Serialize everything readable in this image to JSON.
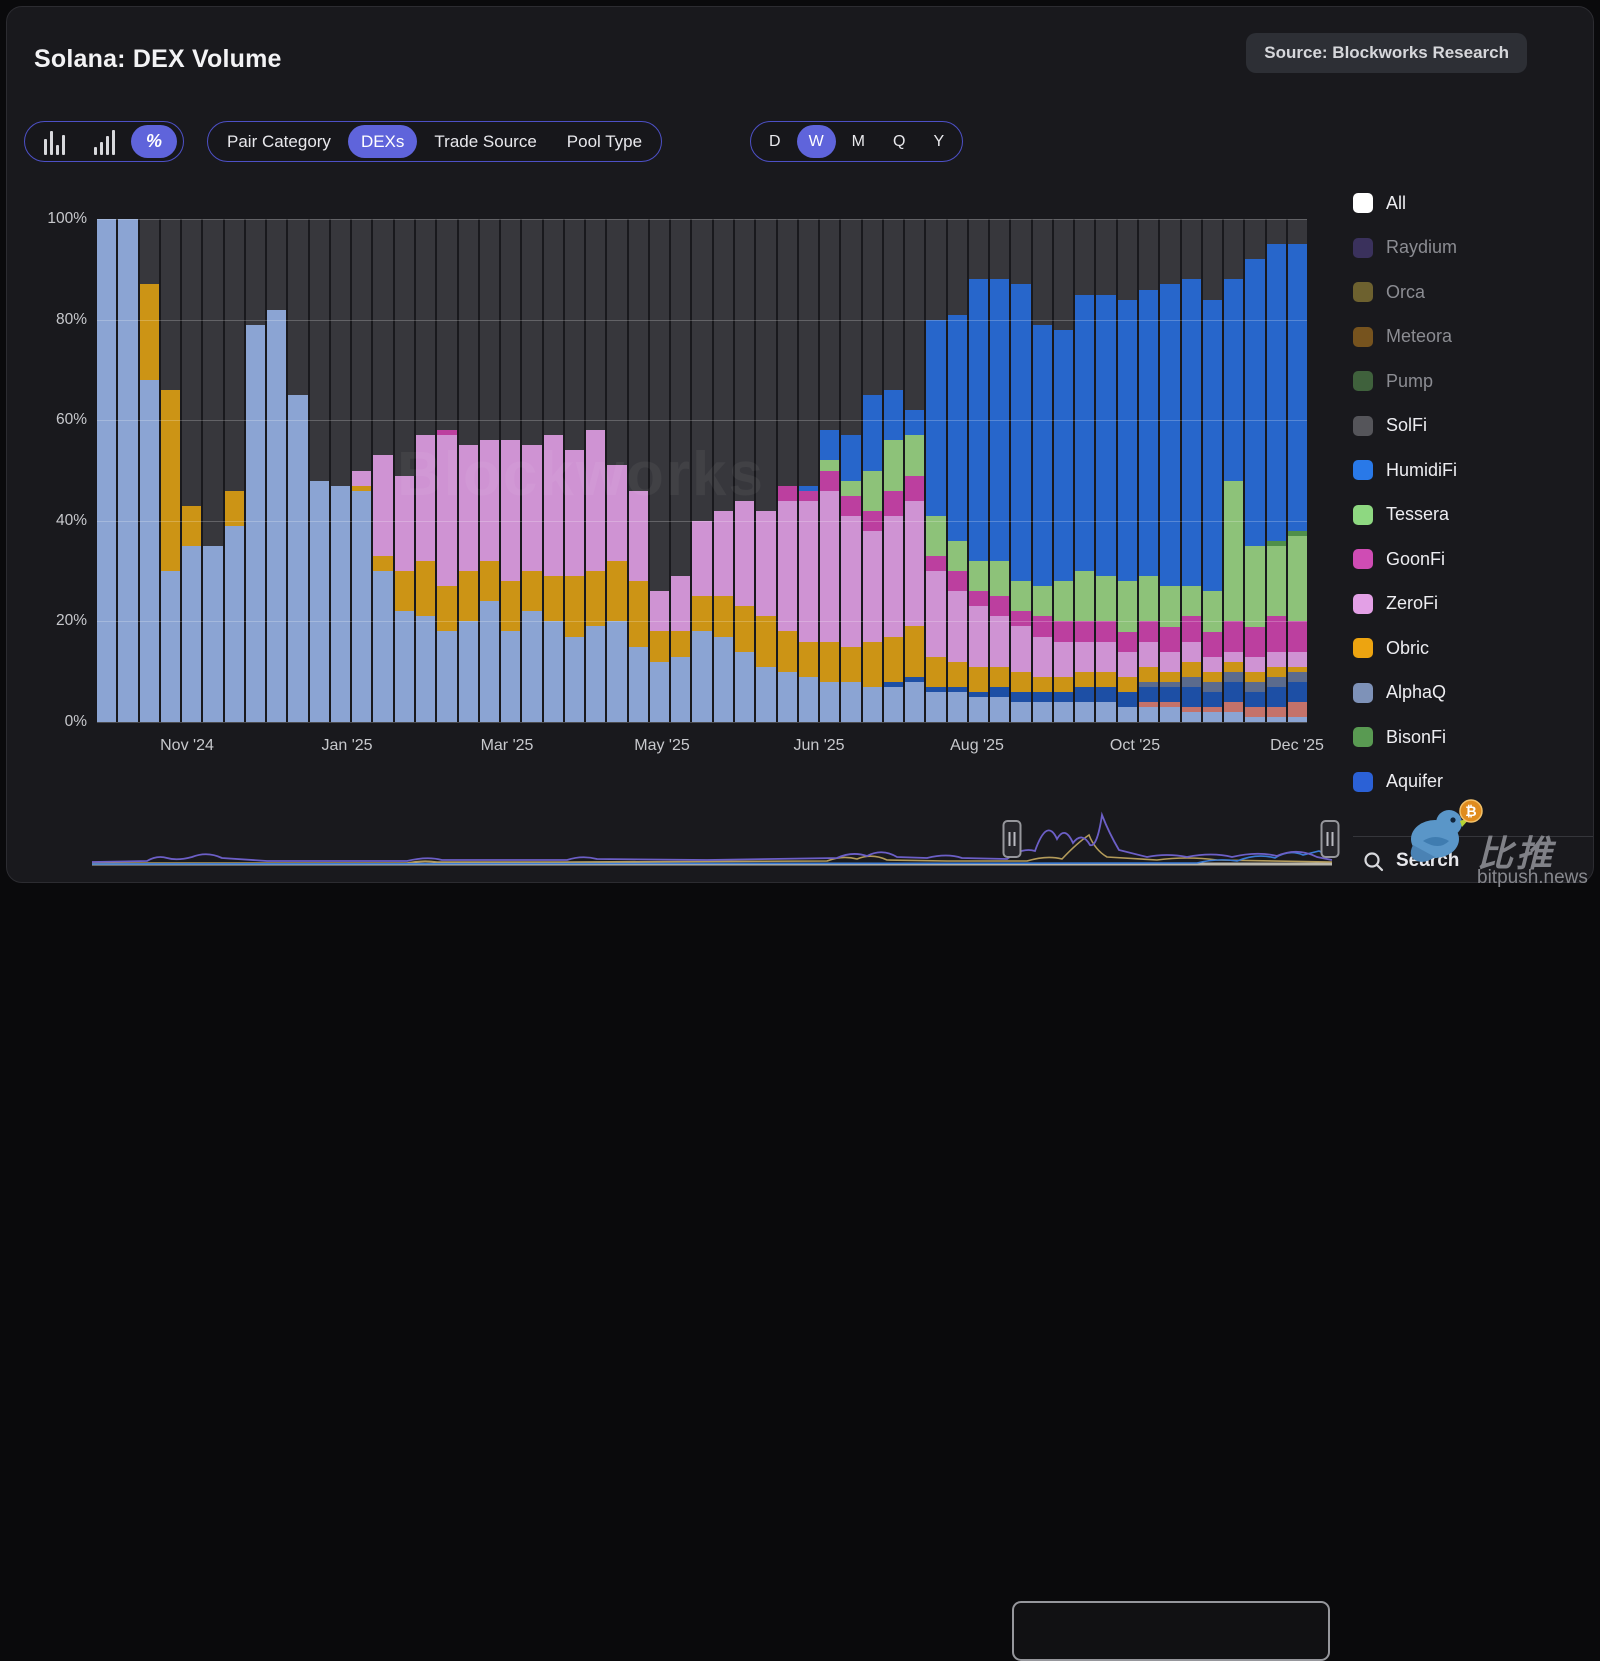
{
  "header": {
    "title": "Solana: DEX Volume",
    "source_badge": "Source: Blockworks Research"
  },
  "toolbar": {
    "chart_types": [
      {
        "name": "bar-chart-icon",
        "selected": false
      },
      {
        "name": "ascending-bars-icon",
        "selected": false
      },
      {
        "name": "percent-icon",
        "glyph": "%",
        "selected": true
      }
    ],
    "filters": [
      {
        "label": "Pair Category",
        "selected": false
      },
      {
        "label": "DEXs",
        "selected": true
      },
      {
        "label": "Trade Source",
        "selected": false
      },
      {
        "label": "Pool Type",
        "selected": false
      }
    ],
    "granularity": [
      {
        "label": "D",
        "selected": false
      },
      {
        "label": "W",
        "selected": true
      },
      {
        "label": "M",
        "selected": false
      },
      {
        "label": "Q",
        "selected": false
      },
      {
        "label": "Y",
        "selected": false
      }
    ],
    "accent_color": "#5f64db"
  },
  "legend": {
    "items": [
      {
        "label": "All",
        "color": "#ffffff",
        "dimmed": false
      },
      {
        "label": "Raydium",
        "color": "#453a72",
        "dimmed": true
      },
      {
        "label": "Orca",
        "color": "#8a7a35",
        "dimmed": true
      },
      {
        "label": "Meteora",
        "color": "#96671f",
        "dimmed": true
      },
      {
        "label": "Pump",
        "color": "#4c7a47",
        "dimmed": true
      },
      {
        "label": "SolFi",
        "color": "#55555a",
        "dimmed": false
      },
      {
        "label": "HumidiFi",
        "color": "#2979e8",
        "dimmed": false
      },
      {
        "label": "Tessera",
        "color": "#8ed881",
        "dimmed": false
      },
      {
        "label": "GoonFi",
        "color": "#cf4cb4",
        "dimmed": false
      },
      {
        "label": "ZeroFi",
        "color": "#e3a0e6",
        "dimmed": false
      },
      {
        "label": "Obric",
        "color": "#eda410",
        "dimmed": false
      },
      {
        "label": "AlphaQ",
        "color": "#7e92b8",
        "dimmed": false
      },
      {
        "label": "BisonFi",
        "color": "#599a52",
        "dimmed": false
      },
      {
        "label": "Aquifer",
        "color": "#2b61d6",
        "dimmed": false
      }
    ]
  },
  "search": {
    "label": "Search"
  },
  "watermarks": {
    "chart_text": "Blockworks",
    "bitpush_cn": "比推",
    "bitpush_domain": "bitpush.news"
  },
  "chart_data": {
    "type": "bar",
    "stacked": true,
    "normalized": "percent",
    "title": "Solana: DEX Volume",
    "granularity": "weekly",
    "x_axis_labels": [
      "Nov '24",
      "Jan '25",
      "Mar '25",
      "May '25",
      "Jun '25",
      "Aug '25",
      "Oct '25",
      "Dec '25"
    ],
    "y_ticks": [
      "0%",
      "20%",
      "40%",
      "60%",
      "80%",
      "100%"
    ],
    "ylim": [
      0,
      100
    ],
    "grid": true,
    "legend_position": "right",
    "series_order_bottom_to_top": [
      "AlphaQ",
      "unlabeled-salmon",
      "Aquifer",
      "unlabeled-slate",
      "Obric",
      "ZeroFi",
      "GoonFi",
      "Tessera",
      "BisonFi",
      "HumidiFi",
      "SolFi"
    ],
    "series_colors": {
      "AlphaQ": "#8ba4d3",
      "unlabeled-salmon": "#c4726a",
      "Aquifer": "#1d4fa5",
      "unlabeled-slate": "#5b6b8d",
      "Obric": "#cc9415",
      "ZeroFi": "#cf93d3",
      "GoonFi": "#bc3f9f",
      "Tessera": "#8dc279",
      "BisonFi": "#4f8f4a",
      "HumidiFi": "#2766cb",
      "SolFi": "#37373c"
    },
    "bars_percent_by_series": [
      [
        100,
        0,
        0,
        0,
        0,
        0,
        0,
        0,
        0,
        0,
        0
      ],
      [
        100,
        0,
        0,
        0,
        0,
        0,
        0,
        0,
        0,
        0,
        0
      ],
      [
        68,
        0,
        0,
        0,
        19,
        0,
        0,
        0,
        0,
        0,
        13
      ],
      [
        30,
        0,
        0,
        0,
        36,
        0,
        0,
        0,
        0,
        0,
        34
      ],
      [
        35,
        0,
        0,
        0,
        8,
        0,
        0,
        0,
        0,
        0,
        57
      ],
      [
        35,
        0,
        0,
        0,
        0,
        0,
        0,
        0,
        0,
        0,
        65
      ],
      [
        39,
        0,
        0,
        0,
        7,
        0,
        0,
        0,
        0,
        0,
        54
      ],
      [
        79,
        0,
        0,
        0,
        0,
        0,
        0,
        0,
        0,
        0,
        21
      ],
      [
        82,
        0,
        0,
        0,
        0,
        0,
        0,
        0,
        0,
        0,
        18
      ],
      [
        65,
        0,
        0,
        0,
        0,
        0,
        0,
        0,
        0,
        0,
        35
      ],
      [
        48,
        0,
        0,
        0,
        0,
        0,
        0,
        0,
        0,
        0,
        52
      ],
      [
        47,
        0,
        0,
        0,
        0,
        0,
        0,
        0,
        0,
        0,
        53
      ],
      [
        46,
        0,
        0,
        0,
        1,
        3,
        0,
        0,
        0,
        0,
        50
      ],
      [
        30,
        0,
        0,
        0,
        3,
        20,
        0,
        0,
        0,
        0,
        47
      ],
      [
        22,
        0,
        0,
        0,
        8,
        19,
        0,
        0,
        0,
        0,
        51
      ],
      [
        21,
        0,
        0,
        0,
        11,
        25,
        0,
        0,
        0,
        0,
        43
      ],
      [
        18,
        0,
        0,
        0,
        9,
        30,
        1,
        0,
        0,
        0,
        42
      ],
      [
        20,
        0,
        0,
        0,
        10,
        25,
        0,
        0,
        0,
        0,
        45
      ],
      [
        24,
        0,
        0,
        0,
        8,
        24,
        0,
        0,
        0,
        0,
        44
      ],
      [
        18,
        0,
        0,
        0,
        10,
        28,
        0,
        0,
        0,
        0,
        44
      ],
      [
        22,
        0,
        0,
        0,
        8,
        25,
        0,
        0,
        0,
        0,
        45
      ],
      [
        20,
        0,
        0,
        0,
        9,
        28,
        0,
        0,
        0,
        0,
        43
      ],
      [
        17,
        0,
        0,
        0,
        12,
        25,
        0,
        0,
        0,
        0,
        46
      ],
      [
        19,
        0,
        0,
        0,
        11,
        28,
        0,
        0,
        0,
        0,
        42
      ],
      [
        20,
        0,
        0,
        0,
        12,
        19,
        0,
        0,
        0,
        0,
        49
      ],
      [
        15,
        0,
        0,
        0,
        13,
        18,
        0,
        0,
        0,
        0,
        54
      ],
      [
        12,
        0,
        0,
        0,
        6,
        8,
        0,
        0,
        0,
        0,
        74
      ],
      [
        13,
        0,
        0,
        0,
        5,
        11,
        0,
        0,
        0,
        0,
        71
      ],
      [
        18,
        0,
        0,
        0,
        7,
        15,
        0,
        0,
        0,
        0,
        60
      ],
      [
        17,
        0,
        0,
        0,
        8,
        17,
        0,
        0,
        0,
        0,
        58
      ],
      [
        14,
        0,
        0,
        0,
        9,
        21,
        0,
        0,
        0,
        0,
        56
      ],
      [
        11,
        0,
        0,
        0,
        10,
        21,
        0,
        0,
        0,
        0,
        58
      ],
      [
        10,
        0,
        0,
        0,
        8,
        26,
        3,
        0,
        0,
        0,
        53
      ],
      [
        9,
        0,
        0,
        0,
        7,
        28,
        2,
        0,
        0,
        1,
        53
      ],
      [
        8,
        0,
        0,
        0,
        8,
        30,
        4,
        2,
        0,
        6,
        42
      ],
      [
        8,
        0,
        0,
        0,
        7,
        26,
        4,
        3,
        0,
        9,
        43
      ],
      [
        7,
        0,
        0,
        0,
        9,
        22,
        4,
        8,
        0,
        15,
        35
      ],
      [
        7,
        0,
        1,
        0,
        9,
        24,
        5,
        10,
        0,
        10,
        34
      ],
      [
        8,
        0,
        1,
        0,
        10,
        25,
        5,
        8,
        0,
        5,
        38
      ],
      [
        6,
        0,
        1,
        0,
        6,
        17,
        3,
        8,
        0,
        39,
        20
      ],
      [
        6,
        0,
        1,
        0,
        5,
        14,
        4,
        6,
        0,
        45,
        19
      ],
      [
        5,
        0,
        1,
        0,
        5,
        12,
        3,
        6,
        0,
        56,
        12
      ],
      [
        5,
        0,
        2,
        0,
        4,
        10,
        4,
        7,
        0,
        56,
        12
      ],
      [
        4,
        0,
        2,
        0,
        4,
        9,
        3,
        6,
        0,
        59,
        13
      ],
      [
        4,
        0,
        2,
        0,
        3,
        8,
        4,
        6,
        0,
        52,
        21
      ],
      [
        4,
        0,
        2,
        0,
        3,
        7,
        4,
        8,
        0,
        50,
        22
      ],
      [
        4,
        0,
        3,
        0,
        3,
        6,
        4,
        10,
        0,
        55,
        15
      ],
      [
        4,
        0,
        3,
        0,
        3,
        6,
        4,
        9,
        0,
        56,
        15
      ],
      [
        3,
        0,
        3,
        0,
        3,
        5,
        4,
        10,
        0,
        56,
        16
      ],
      [
        3,
        1,
        3,
        1,
        3,
        5,
        4,
        9,
        0,
        57,
        14
      ],
      [
        3,
        1,
        3,
        1,
        2,
        4,
        5,
        8,
        0,
        60,
        13
      ],
      [
        2,
        1,
        4,
        2,
        3,
        4,
        5,
        6,
        0,
        61,
        12
      ],
      [
        2,
        1,
        3,
        2,
        2,
        3,
        5,
        8,
        0,
        58,
        16
      ],
      [
        2,
        2,
        4,
        2,
        2,
        2,
        6,
        28,
        0,
        40,
        12
      ],
      [
        1,
        2,
        3,
        2,
        2,
        3,
        6,
        16,
        0,
        57,
        8
      ],
      [
        1,
        2,
        4,
        2,
        2,
        3,
        7,
        14,
        1,
        59,
        5
      ],
      [
        1,
        3,
        4,
        2,
        1,
        3,
        6,
        17,
        1,
        57,
        5
      ]
    ]
  }
}
